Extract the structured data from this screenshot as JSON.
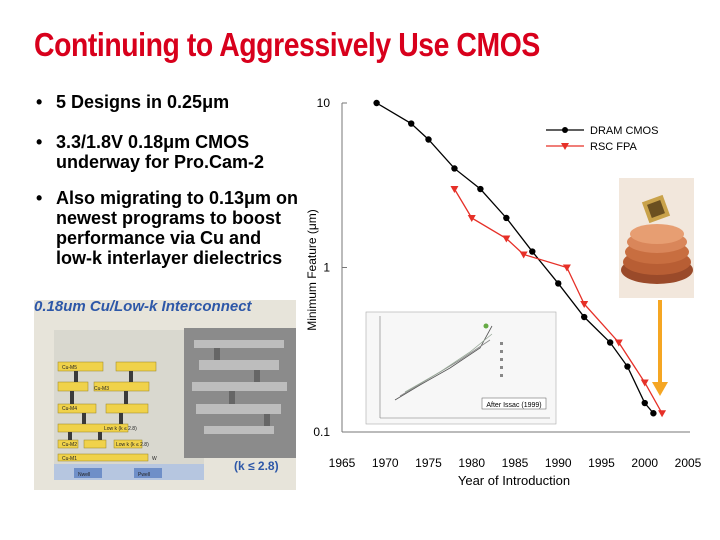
{
  "slide": {
    "title": "Continuing to Aggressively Use CMOS",
    "bullets": [
      {
        "marker": "•",
        "text": "5 Designs in 0.25μm"
      },
      {
        "marker": "•",
        "text": "3.3/1.8V 0.18μm CMOS underway for Pro.Cam-2"
      },
      {
        "marker": "•",
        "text": "Also migrating to 0.13μm on newest programs to boost performance via Cu and low-k interlayer dielectrics"
      }
    ],
    "chip_image": {
      "label": "0.18um Cu/Low-k Interconnect",
      "k_label": "(k ≤ 2.8)",
      "layer_labels": [
        "Cu-M5",
        "Cu-M4",
        "Cu-M3",
        "Cu-M2",
        "Low k (k ≤ 2.8)",
        "Low k (k ≤ 2.8)",
        "Cu-M1",
        "W",
        "Nwell",
        "Pwell"
      ]
    },
    "coin_image": {
      "icon": "chip-on-coins-photo"
    },
    "inset": {
      "annotation": "After Issac (1999)"
    }
  },
  "chart_data": {
    "type": "line",
    "title": "",
    "xlabel": "Year of Introduction",
    "ylabel": "Minimum Feature (μm)",
    "xlim": [
      1965,
      2005
    ],
    "ylim": [
      0.1,
      10
    ],
    "y_scale": "log",
    "x_ticks": [
      "1965",
      "1970",
      "1975",
      "1980",
      "1985",
      "1990",
      "1995",
      "2000",
      "2005"
    ],
    "y_ticks": [
      "10",
      "1",
      "0.1"
    ],
    "grid": false,
    "legend_position": "top-right",
    "series": [
      {
        "name": "DRAM CMOS",
        "color": "#000000",
        "marker": "circle",
        "x": [
          1969,
          1973,
          1975,
          1978,
          1981,
          1984,
          1987,
          1990,
          1993,
          1996,
          1998,
          2000,
          2001
        ],
        "y": [
          10,
          7.5,
          6,
          4,
          3,
          2,
          1.25,
          0.8,
          0.5,
          0.35,
          0.25,
          0.15,
          0.13
        ]
      },
      {
        "name": "RSC FPA",
        "color": "#e63028",
        "marker": "triangle-down",
        "x": [
          1978,
          1980,
          1984,
          1986,
          1991,
          1993,
          1997,
          2000,
          2002
        ],
        "y": [
          3,
          2,
          1.5,
          1.2,
          1.0,
          0.6,
          0.35,
          0.2,
          0.13
        ]
      }
    ]
  }
}
